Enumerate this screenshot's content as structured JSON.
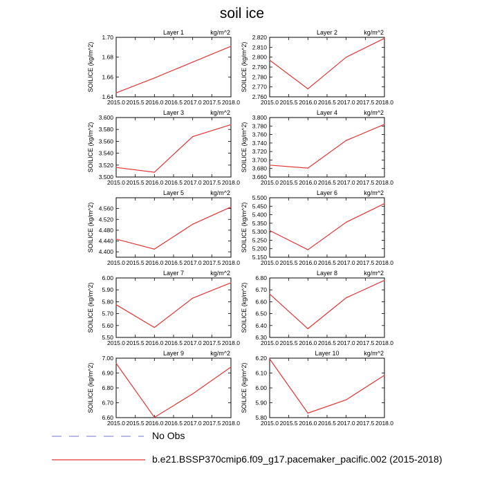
{
  "figure": {
    "title": "soil ice"
  },
  "legend": {
    "items": [
      {
        "label": "No Obs",
        "color": "#8f8fe0",
        "dash": "dashed"
      },
      {
        "label": "b.e21.BSSP370cmip6.f09_g17.pacemaker_pacific.002 (2015-2018)",
        "color": "#e23434",
        "dash": "solid"
      }
    ]
  },
  "chart_data": [
    {
      "type": "line",
      "title": "Layer 1",
      "units": "kg/m^2",
      "ylabel": "SOILICE  (kg/m^2)",
      "x": [
        2015.0,
        2016.0,
        2017.0,
        2018.0
      ],
      "values": [
        1.644,
        1.659,
        1.675,
        1.691
      ],
      "xlim": [
        2015.0,
        2018.0
      ],
      "ylim": [
        1.64,
        1.7
      ],
      "xticks": [
        "2015.0",
        "2015.5",
        "2016.0",
        "2016.5",
        "2017.0",
        "2017.5",
        "2018.0"
      ],
      "yticks": [
        "1.64",
        "1.66",
        "1.68",
        "1.70"
      ]
    },
    {
      "type": "line",
      "title": "Layer 2",
      "units": "kg/m^2",
      "ylabel": "SOILICE  (kg/m^2)",
      "x": [
        2015.0,
        2016.0,
        2017.0,
        2018.0
      ],
      "values": [
        2.797,
        2.768,
        2.8,
        2.819
      ],
      "xlim": [
        2015.0,
        2018.0
      ],
      "ylim": [
        2.76,
        2.82
      ],
      "xticks": [
        "2015.0",
        "2015.5",
        "2016.0",
        "2016.5",
        "2017.0",
        "2017.5",
        "2018.0"
      ],
      "yticks": [
        "2.760",
        "2.770",
        "2.780",
        "2.790",
        "2.800",
        "2.810",
        "2.820"
      ]
    },
    {
      "type": "line",
      "title": "Layer 3",
      "units": "kg/m^2",
      "ylabel": "SOILICE  (kg/m^2)",
      "x": [
        2015.0,
        2016.0,
        2017.0,
        2018.0
      ],
      "values": [
        3.516,
        3.508,
        3.568,
        3.588
      ],
      "xlim": [
        2015.0,
        2018.0
      ],
      "ylim": [
        3.5,
        3.6
      ],
      "xticks": [
        "2015.0",
        "2015.5",
        "2016.0",
        "2016.5",
        "2017.0",
        "2017.5",
        "2018.0"
      ],
      "yticks": [
        "3.500",
        "3.520",
        "3.540",
        "3.560",
        "3.580",
        "3.600"
      ]
    },
    {
      "type": "line",
      "title": "Layer 4",
      "units": "kg/m^2",
      "ylabel": "SOILICE  (kg/m^2)",
      "x": [
        2015.0,
        2016.0,
        2017.0,
        2018.0
      ],
      "values": [
        3.688,
        3.681,
        3.746,
        3.784
      ],
      "xlim": [
        2015.0,
        2018.0
      ],
      "ylim": [
        3.66,
        3.8
      ],
      "xticks": [
        "2015.0",
        "2015.5",
        "2016.0",
        "2016.5",
        "2017.0",
        "2017.5",
        "2018.0"
      ],
      "yticks": [
        "3.660",
        "3.680",
        "3.700",
        "3.720",
        "3.740",
        "3.760",
        "3.780",
        "3.800"
      ]
    },
    {
      "type": "line",
      "title": "Layer 5",
      "units": "kg/m^2",
      "ylabel": "SOILICE  (kg/m^2)",
      "x": [
        2015.0,
        2016.0,
        2017.0,
        2018.0
      ],
      "values": [
        4.447,
        4.41,
        4.502,
        4.566
      ],
      "xlim": [
        2015.0,
        2018.0
      ],
      "ylim": [
        4.38,
        4.6
      ],
      "xticks": [
        "2015.0",
        "2015.5",
        "2016.0",
        "2016.5",
        "2017.0",
        "2017.5",
        "2018.0"
      ],
      "yticks": [
        "4.400",
        "4.440",
        "4.480",
        "4.520",
        "4.560"
      ]
    },
    {
      "type": "line",
      "title": "Layer 6",
      "units": "kg/m^2",
      "ylabel": "SOILICE  (kg/m^2)",
      "x": [
        2015.0,
        2016.0,
        2017.0,
        2018.0
      ],
      "values": [
        5.307,
        5.194,
        5.356,
        5.466
      ],
      "xlim": [
        2015.0,
        2018.0
      ],
      "ylim": [
        5.15,
        5.5
      ],
      "xticks": [
        "2015.0",
        "2015.5",
        "2016.0",
        "2016.5",
        "2017.0",
        "2017.5",
        "2018.0"
      ],
      "yticks": [
        "5.150",
        "5.200",
        "5.250",
        "5.300",
        "5.350",
        "5.400",
        "5.450",
        "5.500"
      ]
    },
    {
      "type": "line",
      "title": "Layer 7",
      "units": "kg/m^2",
      "ylabel": "SOILICE  (kg/m^2)",
      "x": [
        2015.0,
        2016.0,
        2017.0,
        2018.0
      ],
      "values": [
        5.775,
        5.584,
        5.83,
        5.96
      ],
      "xlim": [
        2015.0,
        2018.0
      ],
      "ylim": [
        5.5,
        6.0
      ],
      "xticks": [
        "2015.0",
        "2015.5",
        "2016.0",
        "2016.5",
        "2017.0",
        "2017.5",
        "2018.0"
      ],
      "yticks": [
        "5.50",
        "5.60",
        "5.70",
        "5.80",
        "5.90",
        "6.00"
      ]
    },
    {
      "type": "line",
      "title": "Layer 8",
      "units": "kg/m^2",
      "ylabel": "SOILICE  (kg/m^2)",
      "x": [
        2015.0,
        2016.0,
        2017.0,
        2018.0
      ],
      "values": [
        6.665,
        6.373,
        6.633,
        6.78
      ],
      "xlim": [
        2015.0,
        2018.0
      ],
      "ylim": [
        6.3,
        6.8
      ],
      "xticks": [
        "2015.0",
        "2015.5",
        "2016.0",
        "2016.5",
        "2017.0",
        "2017.5",
        "2018.0"
      ],
      "yticks": [
        "6.30",
        "6.40",
        "6.50",
        "6.60",
        "6.70",
        "6.80"
      ]
    },
    {
      "type": "line",
      "title": "Layer 9",
      "units": "kg/m^2",
      "ylabel": "SOILICE  (kg/m^2)",
      "x": [
        2015.0,
        2016.0,
        2017.0,
        2018.0
      ],
      "values": [
        6.965,
        6.602,
        6.76,
        6.94
      ],
      "xlim": [
        2015.0,
        2018.0
      ],
      "ylim": [
        6.6,
        7.0
      ],
      "xticks": [
        "2015.0",
        "2015.5",
        "2016.0",
        "2016.5",
        "2017.0",
        "2017.5",
        "2018.0"
      ],
      "yticks": [
        "6.60",
        "6.70",
        "6.80",
        "6.90",
        "7.00"
      ]
    },
    {
      "type": "line",
      "title": "Layer 10",
      "units": "kg/m^2",
      "ylabel": "SOILICE  (kg/m^2)",
      "x": [
        2015.0,
        2016.0,
        2017.0,
        2018.0
      ],
      "values": [
        6.195,
        5.83,
        5.92,
        6.085
      ],
      "xlim": [
        2015.0,
        2018.0
      ],
      "ylim": [
        5.8,
        6.2
      ],
      "xticks": [
        "2015.0",
        "2015.5",
        "2016.0",
        "2016.5",
        "2017.0",
        "2017.5",
        "2018.0"
      ],
      "yticks": [
        "5.80",
        "5.90",
        "6.00",
        "6.10",
        "6.20"
      ]
    }
  ]
}
